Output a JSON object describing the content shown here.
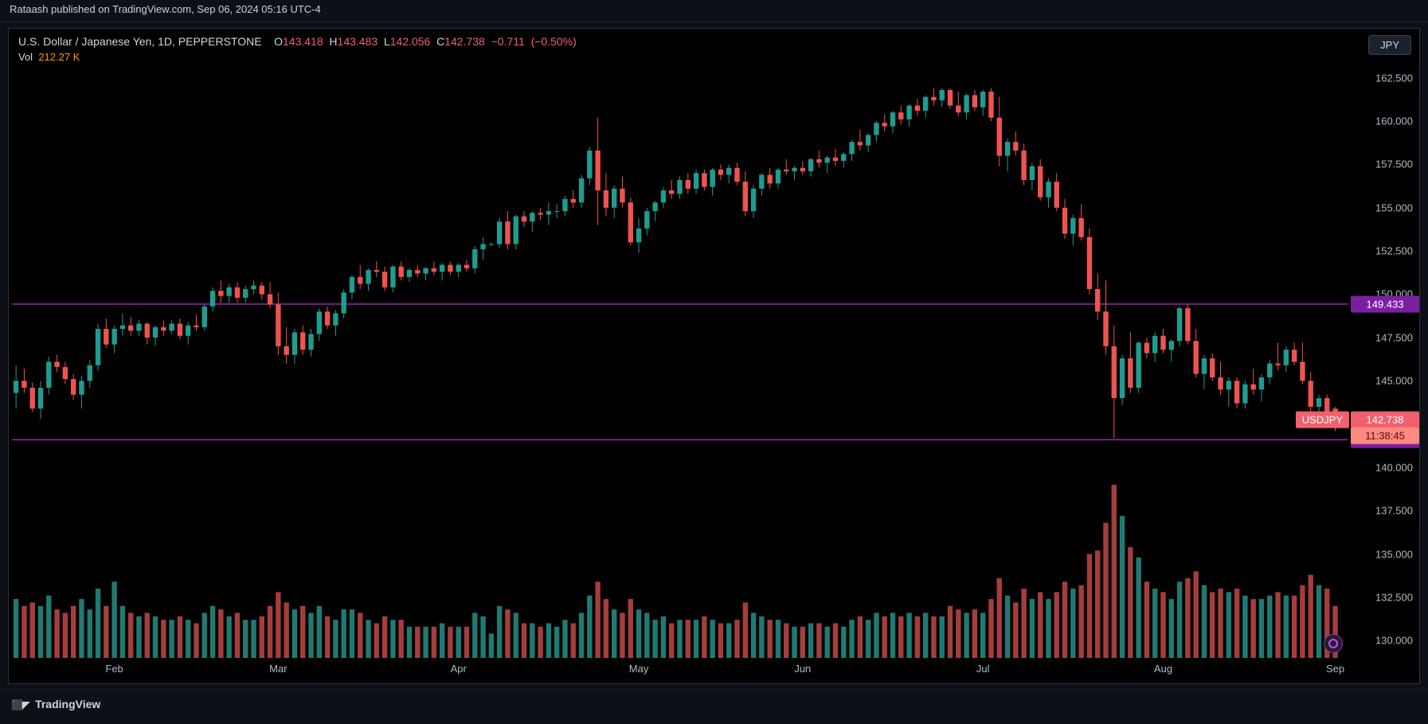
{
  "meta": {
    "published_by": "Rataash published on TradingView.com, Sep 06, 2024 05:16 UTC-4",
    "footer_brand": "TradingView"
  },
  "header": {
    "symbol_desc": "U.S. Dollar / Japanese Yen, 1D, PEPPERSTONE",
    "o_label": "O",
    "o_val": "143.418",
    "h_label": "H",
    "h_val": "143.483",
    "l_label": "L",
    "l_val": "142.056",
    "c_label": "C",
    "c_val": "142.738",
    "chg_abs": "−0.711",
    "chg_pct": "(−0.50%)",
    "vol_label": "Vol",
    "vol_val": "212.27 K",
    "currency_btn": "JPY"
  },
  "price_axis": {
    "min": 129.0,
    "max": 163.5,
    "ticks": [
      162.5,
      160.0,
      157.5,
      155.0,
      152.5,
      150.0,
      147.5,
      145.0,
      142.5,
      140.0,
      137.5,
      135.0,
      132.5,
      130.0
    ],
    "tick_labels": [
      "162.500",
      "160.000",
      "157.500",
      "155.000",
      "152.500",
      "150.000",
      "147.500",
      "145.000",
      "142.500",
      "140.000",
      "137.500",
      "135.000",
      "132.500",
      "130.000"
    ],
    "color": "#b2b8c3",
    "fontsize": 13
  },
  "time_axis": {
    "labels": [
      "Feb",
      "Mar",
      "Apr",
      "May",
      "Jun",
      "Jul",
      "Aug",
      "Sep"
    ],
    "positions": [
      12,
      32,
      54,
      76,
      96,
      118,
      140,
      161
    ]
  },
  "hlines": [
    {
      "value": 149.433,
      "label": "149.433",
      "color": "#9c27b0",
      "tag_bg": "#7b1fa2"
    },
    {
      "value": 141.604,
      "label": "141.604",
      "color": "#9c27b0",
      "tag_bg": "#7b1fa2"
    }
  ],
  "last_price": {
    "symbol": "USDJPY",
    "price": "142.738",
    "countdown": "11:38:45",
    "symbol_bg": "#f0616d",
    "price_bg": "#f0616d",
    "cd_bg": "#ff8a80",
    "value": 142.738
  },
  "style": {
    "bg": "#000000",
    "frame_bg": "#000000",
    "candle_up": "#1f9c8f",
    "candle_down": "#ef5350",
    "wick_up": "#1f9c8f",
    "wick_down": "#ef5350",
    "vol_up": "#1f7a72",
    "vol_down": "#a63d3d",
    "grid": "none",
    "border": "#2c3542",
    "candle_width_ratio": 0.62
  },
  "volume_pane": {
    "max": 100,
    "baseline_price": 129.0,
    "top_price": 139.0
  },
  "candles": [
    {
      "o": 144.3,
      "h": 145.9,
      "l": 143.4,
      "c": 145.0,
      "v": 34
    },
    {
      "o": 145.0,
      "h": 145.7,
      "l": 144.3,
      "c": 144.6,
      "v": 30
    },
    {
      "o": 144.6,
      "h": 144.9,
      "l": 143.2,
      "c": 143.4,
      "v": 32
    },
    {
      "o": 143.4,
      "h": 145.0,
      "l": 142.8,
      "c": 144.6,
      "v": 30
    },
    {
      "o": 144.6,
      "h": 146.4,
      "l": 144.2,
      "c": 146.1,
      "v": 36
    },
    {
      "o": 146.1,
      "h": 146.5,
      "l": 145.5,
      "c": 145.8,
      "v": 28
    },
    {
      "o": 145.8,
      "h": 146.1,
      "l": 144.8,
      "c": 145.1,
      "v": 26
    },
    {
      "o": 145.1,
      "h": 145.4,
      "l": 143.9,
      "c": 144.2,
      "v": 30
    },
    {
      "o": 144.2,
      "h": 145.3,
      "l": 143.4,
      "c": 145.0,
      "v": 34
    },
    {
      "o": 145.0,
      "h": 146.2,
      "l": 144.6,
      "c": 145.9,
      "v": 28
    },
    {
      "o": 145.9,
      "h": 148.3,
      "l": 145.6,
      "c": 148.0,
      "v": 40
    },
    {
      "o": 148.0,
      "h": 148.6,
      "l": 146.9,
      "c": 147.1,
      "v": 30
    },
    {
      "o": 147.1,
      "h": 148.2,
      "l": 146.6,
      "c": 148.0,
      "v": 44
    },
    {
      "o": 148.0,
      "h": 148.9,
      "l": 147.6,
      "c": 148.2,
      "v": 30
    },
    {
      "o": 148.2,
      "h": 148.7,
      "l": 147.6,
      "c": 147.9,
      "v": 26
    },
    {
      "o": 147.9,
      "h": 148.5,
      "l": 147.6,
      "c": 148.3,
      "v": 24
    },
    {
      "o": 148.3,
      "h": 148.4,
      "l": 147.1,
      "c": 147.5,
      "v": 26
    },
    {
      "o": 147.5,
      "h": 148.2,
      "l": 147.0,
      "c": 148.1,
      "v": 24
    },
    {
      "o": 148.1,
      "h": 148.5,
      "l": 147.6,
      "c": 147.9,
      "v": 22
    },
    {
      "o": 147.9,
      "h": 148.5,
      "l": 147.7,
      "c": 148.3,
      "v": 22
    },
    {
      "o": 148.3,
      "h": 148.6,
      "l": 147.4,
      "c": 147.6,
      "v": 24
    },
    {
      "o": 147.6,
      "h": 148.4,
      "l": 147.1,
      "c": 148.2,
      "v": 22
    },
    {
      "o": 148.2,
      "h": 148.8,
      "l": 147.9,
      "c": 148.1,
      "v": 20
    },
    {
      "o": 148.1,
      "h": 149.4,
      "l": 147.9,
      "c": 149.3,
      "v": 26
    },
    {
      "o": 149.3,
      "h": 150.4,
      "l": 149.0,
      "c": 150.2,
      "v": 30
    },
    {
      "o": 150.2,
      "h": 150.8,
      "l": 149.5,
      "c": 149.9,
      "v": 28
    },
    {
      "o": 149.9,
      "h": 150.6,
      "l": 149.5,
      "c": 150.4,
      "v": 24
    },
    {
      "o": 150.4,
      "h": 150.7,
      "l": 149.5,
      "c": 149.8,
      "v": 26
    },
    {
      "o": 149.8,
      "h": 150.5,
      "l": 149.5,
      "c": 150.3,
      "v": 22
    },
    {
      "o": 150.3,
      "h": 150.8,
      "l": 150.0,
      "c": 150.5,
      "v": 22
    },
    {
      "o": 150.5,
      "h": 150.7,
      "l": 149.7,
      "c": 150.0,
      "v": 24
    },
    {
      "o": 150.0,
      "h": 150.7,
      "l": 149.2,
      "c": 149.4,
      "v": 30
    },
    {
      "o": 149.4,
      "h": 150.1,
      "l": 146.5,
      "c": 147.0,
      "v": 38
    },
    {
      "o": 147.0,
      "h": 148.1,
      "l": 146.0,
      "c": 146.5,
      "v": 32
    },
    {
      "o": 146.5,
      "h": 148.0,
      "l": 146.0,
      "c": 147.8,
      "v": 28
    },
    {
      "o": 147.8,
      "h": 148.2,
      "l": 146.5,
      "c": 146.8,
      "v": 30
    },
    {
      "o": 146.8,
      "h": 148.0,
      "l": 146.4,
      "c": 147.7,
      "v": 26
    },
    {
      "o": 147.7,
      "h": 149.2,
      "l": 147.3,
      "c": 149.0,
      "v": 30
    },
    {
      "o": 149.0,
      "h": 149.3,
      "l": 148.0,
      "c": 148.2,
      "v": 24
    },
    {
      "o": 148.2,
      "h": 149.1,
      "l": 147.6,
      "c": 148.9,
      "v": 22
    },
    {
      "o": 148.9,
      "h": 150.3,
      "l": 148.6,
      "c": 150.1,
      "v": 28
    },
    {
      "o": 150.1,
      "h": 151.1,
      "l": 149.7,
      "c": 151.0,
      "v": 28
    },
    {
      "o": 151.0,
      "h": 151.7,
      "l": 150.3,
      "c": 150.6,
      "v": 26
    },
    {
      "o": 150.6,
      "h": 151.5,
      "l": 150.2,
      "c": 151.4,
      "v": 22
    },
    {
      "o": 151.4,
      "h": 151.9,
      "l": 151.0,
      "c": 151.3,
      "v": 20
    },
    {
      "o": 151.3,
      "h": 151.6,
      "l": 150.2,
      "c": 150.4,
      "v": 24
    },
    {
      "o": 150.4,
      "h": 151.7,
      "l": 150.1,
      "c": 151.6,
      "v": 22
    },
    {
      "o": 151.6,
      "h": 151.9,
      "l": 150.8,
      "c": 151.0,
      "v": 22
    },
    {
      "o": 151.0,
      "h": 151.5,
      "l": 150.7,
      "c": 151.4,
      "v": 18
    },
    {
      "o": 151.4,
      "h": 151.7,
      "l": 151.0,
      "c": 151.2,
      "v": 18
    },
    {
      "o": 151.2,
      "h": 151.6,
      "l": 150.8,
      "c": 151.5,
      "v": 18
    },
    {
      "o": 151.5,
      "h": 151.9,
      "l": 151.1,
      "c": 151.3,
      "v": 18
    },
    {
      "o": 151.3,
      "h": 151.8,
      "l": 150.8,
      "c": 151.7,
      "v": 20
    },
    {
      "o": 151.7,
      "h": 151.9,
      "l": 151.1,
      "c": 151.3,
      "v": 18
    },
    {
      "o": 151.3,
      "h": 151.8,
      "l": 151.0,
      "c": 151.7,
      "v": 18
    },
    {
      "o": 151.7,
      "h": 152.0,
      "l": 151.3,
      "c": 151.5,
      "v": 18
    },
    {
      "o": 151.5,
      "h": 152.8,
      "l": 151.2,
      "c": 152.6,
      "v": 26
    },
    {
      "o": 152.6,
      "h": 153.3,
      "l": 152.0,
      "c": 152.9,
      "v": 24
    },
    {
      "o": 152.9,
      "h": 153.0,
      "l": 152.8,
      "c": 152.9,
      "v": 14
    },
    {
      "o": 152.9,
      "h": 154.4,
      "l": 152.7,
      "c": 154.2,
      "v": 30
    },
    {
      "o": 154.2,
      "h": 154.8,
      "l": 152.6,
      "c": 152.9,
      "v": 28
    },
    {
      "o": 152.9,
      "h": 154.6,
      "l": 152.6,
      "c": 154.5,
      "v": 26
    },
    {
      "o": 154.5,
      "h": 154.8,
      "l": 153.9,
      "c": 154.2,
      "v": 20
    },
    {
      "o": 154.2,
      "h": 154.8,
      "l": 153.6,
      "c": 154.7,
      "v": 20
    },
    {
      "o": 154.7,
      "h": 155.0,
      "l": 154.3,
      "c": 154.6,
      "v": 18
    },
    {
      "o": 154.6,
      "h": 155.3,
      "l": 154.0,
      "c": 154.8,
      "v": 20
    },
    {
      "o": 154.8,
      "h": 155.2,
      "l": 154.4,
      "c": 154.8,
      "v": 18
    },
    {
      "o": 154.8,
      "h": 155.7,
      "l": 154.5,
      "c": 155.5,
      "v": 22
    },
    {
      "o": 155.5,
      "h": 156.0,
      "l": 155.0,
      "c": 155.3,
      "v": 20
    },
    {
      "o": 155.3,
      "h": 156.9,
      "l": 155.0,
      "c": 156.7,
      "v": 26
    },
    {
      "o": 156.7,
      "h": 158.5,
      "l": 156.3,
      "c": 158.3,
      "v": 36
    },
    {
      "o": 158.3,
      "h": 160.2,
      "l": 154.0,
      "c": 156.0,
      "v": 44
    },
    {
      "o": 156.0,
      "h": 157.0,
      "l": 154.5,
      "c": 155.0,
      "v": 34
    },
    {
      "o": 155.0,
      "h": 156.3,
      "l": 154.4,
      "c": 156.1,
      "v": 28
    },
    {
      "o": 156.1,
      "h": 156.8,
      "l": 155.0,
      "c": 155.3,
      "v": 26
    },
    {
      "o": 155.3,
      "h": 155.6,
      "l": 152.8,
      "c": 153.0,
      "v": 34
    },
    {
      "o": 153.0,
      "h": 154.4,
      "l": 152.4,
      "c": 153.8,
      "v": 28
    },
    {
      "o": 153.8,
      "h": 155.0,
      "l": 153.4,
      "c": 154.8,
      "v": 26
    },
    {
      "o": 154.8,
      "h": 155.4,
      "l": 154.2,
      "c": 155.3,
      "v": 22
    },
    {
      "o": 155.3,
      "h": 156.2,
      "l": 155.0,
      "c": 156.0,
      "v": 24
    },
    {
      "o": 156.0,
      "h": 156.6,
      "l": 155.5,
      "c": 155.8,
      "v": 20
    },
    {
      "o": 155.8,
      "h": 156.8,
      "l": 155.5,
      "c": 156.6,
      "v": 22
    },
    {
      "o": 156.6,
      "h": 157.0,
      "l": 155.8,
      "c": 156.1,
      "v": 22
    },
    {
      "o": 156.1,
      "h": 157.2,
      "l": 155.8,
      "c": 157.0,
      "v": 22
    },
    {
      "o": 157.0,
      "h": 157.2,
      "l": 156.0,
      "c": 156.2,
      "v": 24
    },
    {
      "o": 156.2,
      "h": 157.3,
      "l": 155.7,
      "c": 157.2,
      "v": 22
    },
    {
      "o": 157.2,
      "h": 157.5,
      "l": 156.6,
      "c": 156.9,
      "v": 20
    },
    {
      "o": 156.9,
      "h": 157.5,
      "l": 156.4,
      "c": 157.3,
      "v": 20
    },
    {
      "o": 157.3,
      "h": 157.6,
      "l": 156.3,
      "c": 156.5,
      "v": 22
    },
    {
      "o": 156.5,
      "h": 157.1,
      "l": 154.5,
      "c": 154.8,
      "v": 32
    },
    {
      "o": 154.8,
      "h": 156.3,
      "l": 154.4,
      "c": 156.1,
      "v": 26
    },
    {
      "o": 156.1,
      "h": 157.0,
      "l": 155.7,
      "c": 156.9,
      "v": 24
    },
    {
      "o": 156.9,
      "h": 157.3,
      "l": 156.1,
      "c": 156.4,
      "v": 22
    },
    {
      "o": 156.4,
      "h": 157.3,
      "l": 156.1,
      "c": 157.2,
      "v": 22
    },
    {
      "o": 157.2,
      "h": 157.8,
      "l": 156.9,
      "c": 157.1,
      "v": 20
    },
    {
      "o": 157.1,
      "h": 157.4,
      "l": 156.6,
      "c": 157.3,
      "v": 18
    },
    {
      "o": 157.3,
      "h": 157.7,
      "l": 156.9,
      "c": 157.1,
      "v": 18
    },
    {
      "o": 157.1,
      "h": 157.9,
      "l": 156.8,
      "c": 157.8,
      "v": 20
    },
    {
      "o": 157.8,
      "h": 158.3,
      "l": 157.3,
      "c": 157.6,
      "v": 20
    },
    {
      "o": 157.6,
      "h": 158.0,
      "l": 157.0,
      "c": 157.9,
      "v": 18
    },
    {
      "o": 157.9,
      "h": 158.4,
      "l": 157.4,
      "c": 157.7,
      "v": 20
    },
    {
      "o": 157.7,
      "h": 158.2,
      "l": 157.3,
      "c": 158.1,
      "v": 18
    },
    {
      "o": 158.1,
      "h": 158.9,
      "l": 157.7,
      "c": 158.8,
      "v": 22
    },
    {
      "o": 158.8,
      "h": 159.5,
      "l": 158.3,
      "c": 158.6,
      "v": 24
    },
    {
      "o": 158.6,
      "h": 159.3,
      "l": 158.2,
      "c": 159.2,
      "v": 22
    },
    {
      "o": 159.2,
      "h": 160.0,
      "l": 158.8,
      "c": 159.9,
      "v": 26
    },
    {
      "o": 159.9,
      "h": 160.4,
      "l": 159.4,
      "c": 159.7,
      "v": 24
    },
    {
      "o": 159.7,
      "h": 160.6,
      "l": 159.3,
      "c": 160.5,
      "v": 26
    },
    {
      "o": 160.5,
      "h": 160.9,
      "l": 159.8,
      "c": 160.1,
      "v": 24
    },
    {
      "o": 160.1,
      "h": 161.0,
      "l": 159.7,
      "c": 160.9,
      "v": 26
    },
    {
      "o": 160.9,
      "h": 161.3,
      "l": 160.3,
      "c": 160.6,
      "v": 24
    },
    {
      "o": 160.6,
      "h": 161.5,
      "l": 160.2,
      "c": 161.4,
      "v": 26
    },
    {
      "o": 161.4,
      "h": 161.9,
      "l": 160.9,
      "c": 161.2,
      "v": 24
    },
    {
      "o": 161.2,
      "h": 161.9,
      "l": 160.8,
      "c": 161.8,
      "v": 24
    },
    {
      "o": 161.8,
      "h": 161.9,
      "l": 160.7,
      "c": 160.9,
      "v": 30
    },
    {
      "o": 160.9,
      "h": 161.7,
      "l": 160.3,
      "c": 160.5,
      "v": 28
    },
    {
      "o": 160.5,
      "h": 161.6,
      "l": 160.1,
      "c": 161.5,
      "v": 26
    },
    {
      "o": 161.5,
      "h": 161.8,
      "l": 160.6,
      "c": 160.8,
      "v": 28
    },
    {
      "o": 160.8,
      "h": 161.8,
      "l": 160.3,
      "c": 161.7,
      "v": 26
    },
    {
      "o": 161.7,
      "h": 161.9,
      "l": 160.0,
      "c": 160.2,
      "v": 34
    },
    {
      "o": 160.2,
      "h": 161.4,
      "l": 157.4,
      "c": 158.0,
      "v": 46
    },
    {
      "o": 158.0,
      "h": 159.0,
      "l": 157.1,
      "c": 158.8,
      "v": 36
    },
    {
      "o": 158.8,
      "h": 159.4,
      "l": 158.0,
      "c": 158.3,
      "v": 32
    },
    {
      "o": 158.3,
      "h": 158.7,
      "l": 156.3,
      "c": 156.6,
      "v": 40
    },
    {
      "o": 156.6,
      "h": 157.6,
      "l": 156.0,
      "c": 157.4,
      "v": 34
    },
    {
      "o": 157.4,
      "h": 157.8,
      "l": 155.4,
      "c": 155.6,
      "v": 38
    },
    {
      "o": 155.6,
      "h": 156.7,
      "l": 155.0,
      "c": 156.5,
      "v": 34
    },
    {
      "o": 156.5,
      "h": 157.0,
      "l": 154.8,
      "c": 155.0,
      "v": 38
    },
    {
      "o": 155.0,
      "h": 155.5,
      "l": 153.2,
      "c": 153.5,
      "v": 44
    },
    {
      "o": 153.5,
      "h": 154.6,
      "l": 152.8,
      "c": 154.4,
      "v": 40
    },
    {
      "o": 154.4,
      "h": 155.2,
      "l": 153.1,
      "c": 153.3,
      "v": 42
    },
    {
      "o": 153.3,
      "h": 153.8,
      "l": 150.0,
      "c": 150.3,
      "v": 60
    },
    {
      "o": 150.3,
      "h": 151.2,
      "l": 148.5,
      "c": 149.0,
      "v": 62
    },
    {
      "o": 149.0,
      "h": 150.8,
      "l": 146.5,
      "c": 147.0,
      "v": 78
    },
    {
      "o": 147.0,
      "h": 148.2,
      "l": 141.7,
      "c": 144.0,
      "v": 100
    },
    {
      "o": 144.0,
      "h": 146.5,
      "l": 143.6,
      "c": 146.3,
      "v": 82
    },
    {
      "o": 146.3,
      "h": 147.8,
      "l": 144.3,
      "c": 144.6,
      "v": 64
    },
    {
      "o": 144.6,
      "h": 147.3,
      "l": 144.3,
      "c": 147.2,
      "v": 58
    },
    {
      "o": 147.2,
      "h": 147.5,
      "l": 146.3,
      "c": 146.6,
      "v": 44
    },
    {
      "o": 146.6,
      "h": 147.8,
      "l": 146.1,
      "c": 147.6,
      "v": 40
    },
    {
      "o": 147.6,
      "h": 148.0,
      "l": 146.6,
      "c": 146.8,
      "v": 38
    },
    {
      "o": 146.8,
      "h": 147.4,
      "l": 146.1,
      "c": 147.3,
      "v": 34
    },
    {
      "o": 147.3,
      "h": 149.3,
      "l": 147.0,
      "c": 149.2,
      "v": 44
    },
    {
      "o": 149.2,
      "h": 149.4,
      "l": 147.1,
      "c": 147.3,
      "v": 46
    },
    {
      "o": 147.3,
      "h": 148.0,
      "l": 145.2,
      "c": 145.4,
      "v": 50
    },
    {
      "o": 145.4,
      "h": 146.5,
      "l": 144.5,
      "c": 146.3,
      "v": 42
    },
    {
      "o": 146.3,
      "h": 146.6,
      "l": 145.0,
      "c": 145.2,
      "v": 38
    },
    {
      "o": 145.2,
      "h": 146.1,
      "l": 144.2,
      "c": 144.5,
      "v": 40
    },
    {
      "o": 144.5,
      "h": 145.2,
      "l": 143.5,
      "c": 145.0,
      "v": 38
    },
    {
      "o": 145.0,
      "h": 145.2,
      "l": 143.4,
      "c": 143.7,
      "v": 40
    },
    {
      "o": 143.7,
      "h": 145.0,
      "l": 143.4,
      "c": 144.8,
      "v": 36
    },
    {
      "o": 144.8,
      "h": 145.7,
      "l": 144.2,
      "c": 144.5,
      "v": 34
    },
    {
      "o": 144.5,
      "h": 145.4,
      "l": 143.8,
      "c": 145.2,
      "v": 34
    },
    {
      "o": 145.2,
      "h": 146.2,
      "l": 144.8,
      "c": 146.0,
      "v": 36
    },
    {
      "o": 146.0,
      "h": 147.2,
      "l": 145.6,
      "c": 145.9,
      "v": 38
    },
    {
      "o": 145.9,
      "h": 147.0,
      "l": 145.5,
      "c": 146.8,
      "v": 36
    },
    {
      "o": 146.8,
      "h": 147.2,
      "l": 145.9,
      "c": 146.1,
      "v": 36
    },
    {
      "o": 146.1,
      "h": 147.2,
      "l": 144.8,
      "c": 145.0,
      "v": 42
    },
    {
      "o": 145.0,
      "h": 145.5,
      "l": 143.2,
      "c": 143.5,
      "v": 48
    },
    {
      "o": 143.5,
      "h": 144.2,
      "l": 142.8,
      "c": 144.0,
      "v": 42
    },
    {
      "o": 144.0,
      "h": 144.2,
      "l": 142.9,
      "c": 143.1,
      "v": 40
    },
    {
      "o": 143.4,
      "h": 143.5,
      "l": 142.1,
      "c": 142.7,
      "v": 30
    }
  ]
}
